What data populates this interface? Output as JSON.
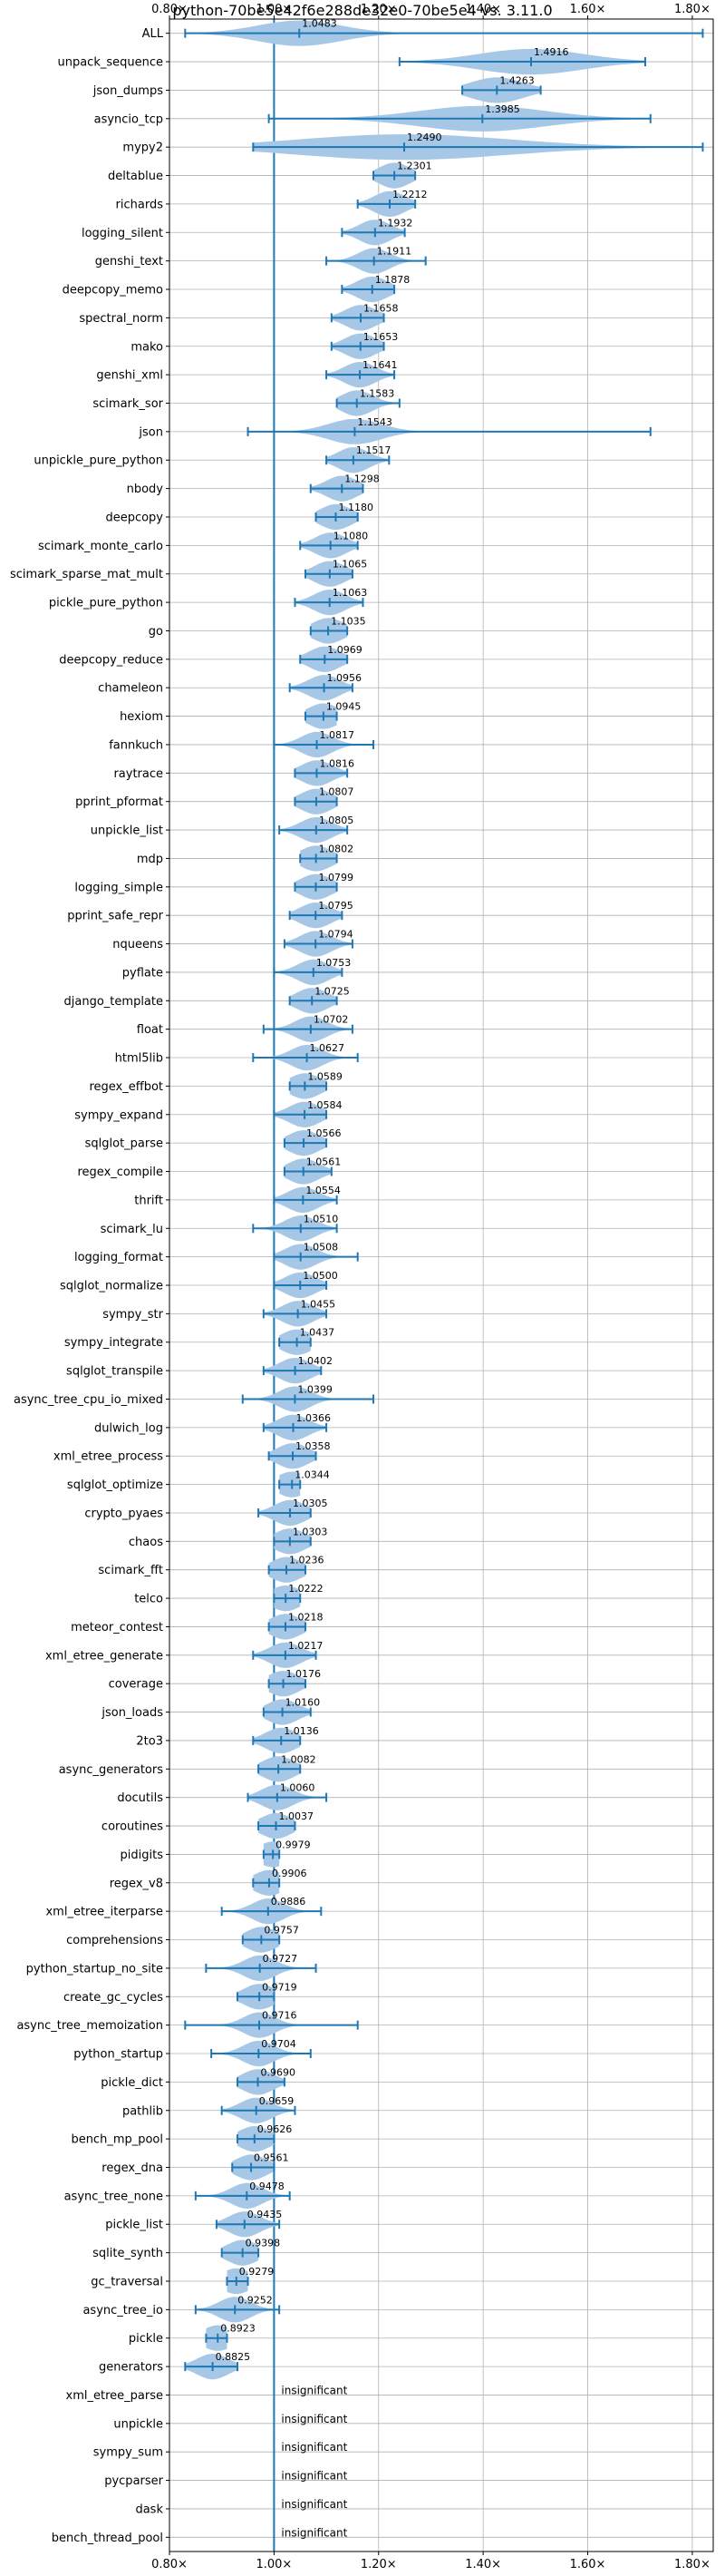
{
  "chart_data": {
    "type": "violin",
    "title": "python-70be5e42f6e288de32e0-70be5e4 vs. 3.11.0",
    "xlabel": "",
    "ylabel": "",
    "xlim": [
      0.8,
      1.84
    ],
    "xticks": [
      0.8,
      1.0,
      1.2,
      1.4,
      1.6,
      1.8
    ],
    "xtick_labels": [
      "0.80×",
      "1.00×",
      "1.20×",
      "1.40×",
      "1.60×",
      "1.80×"
    ],
    "baseline": 1.0,
    "grid": true,
    "color": "#1f77b4",
    "fill_color": "#a6c8e6",
    "insignificant_label": "insignificant",
    "benchmarks": [
      {
        "name": "ALL",
        "value": 1.0483,
        "label": "1.0483",
        "min": 0.83,
        "max": 1.82,
        "spread": 0.08
      },
      {
        "name": "unpack_sequence",
        "value": 1.4916,
        "label": "1.4916",
        "min": 1.24,
        "max": 1.71,
        "spread": 0.1
      },
      {
        "name": "json_dumps",
        "value": 1.4263,
        "label": "1.4263",
        "min": 1.36,
        "max": 1.51,
        "spread": 0.05
      },
      {
        "name": "asyncio_tcp",
        "value": 1.3985,
        "label": "1.3985",
        "min": 0.99,
        "max": 1.72,
        "spread": 0.12
      },
      {
        "name": "mypy2",
        "value": 1.249,
        "label": "1.2490",
        "min": 0.96,
        "max": 1.82,
        "spread": 0.2
      },
      {
        "name": "deltablue",
        "value": 1.2301,
        "label": "1.2301",
        "min": 1.19,
        "max": 1.27,
        "spread": 0.03
      },
      {
        "name": "richards",
        "value": 1.2212,
        "label": "1.2212",
        "min": 1.16,
        "max": 1.27,
        "spread": 0.03
      },
      {
        "name": "logging_silent",
        "value": 1.1932,
        "label": "1.1932",
        "min": 1.13,
        "max": 1.25,
        "spread": 0.03
      },
      {
        "name": "genshi_text",
        "value": 1.1911,
        "label": "1.1911",
        "min": 1.1,
        "max": 1.29,
        "spread": 0.03
      },
      {
        "name": "deepcopy_memo",
        "value": 1.1878,
        "label": "1.1878",
        "min": 1.13,
        "max": 1.23,
        "spread": 0.03
      },
      {
        "name": "spectral_norm",
        "value": 1.1658,
        "label": "1.1658",
        "min": 1.11,
        "max": 1.21,
        "spread": 0.03
      },
      {
        "name": "mako",
        "value": 1.1653,
        "label": "1.1653",
        "min": 1.11,
        "max": 1.21,
        "spread": 0.03
      },
      {
        "name": "genshi_xml",
        "value": 1.1641,
        "label": "1.1641",
        "min": 1.1,
        "max": 1.23,
        "spread": 0.03
      },
      {
        "name": "scimark_sor",
        "value": 1.1583,
        "label": "1.1583",
        "min": 1.12,
        "max": 1.24,
        "spread": 0.03
      },
      {
        "name": "json",
        "value": 1.1543,
        "label": "1.1543",
        "min": 0.95,
        "max": 1.72,
        "spread": 0.05
      },
      {
        "name": "unpickle_pure_python",
        "value": 1.1517,
        "label": "1.1517",
        "min": 1.1,
        "max": 1.22,
        "spread": 0.03
      },
      {
        "name": "nbody",
        "value": 1.1298,
        "label": "1.1298",
        "min": 1.07,
        "max": 1.17,
        "spread": 0.03
      },
      {
        "name": "deepcopy",
        "value": 1.118,
        "label": "1.1180",
        "min": 1.08,
        "max": 1.16,
        "spread": 0.03
      },
      {
        "name": "scimark_monte_carlo",
        "value": 1.108,
        "label": "1.1080",
        "min": 1.05,
        "max": 1.16,
        "spread": 0.03
      },
      {
        "name": "scimark_sparse_mat_mult",
        "value": 1.1065,
        "label": "1.1065",
        "min": 1.06,
        "max": 1.15,
        "spread": 0.03
      },
      {
        "name": "pickle_pure_python",
        "value": 1.1063,
        "label": "1.1063",
        "min": 1.04,
        "max": 1.17,
        "spread": 0.03
      },
      {
        "name": "go",
        "value": 1.1035,
        "label": "1.1035",
        "min": 1.07,
        "max": 1.14,
        "spread": 0.03
      },
      {
        "name": "deepcopy_reduce",
        "value": 1.0969,
        "label": "1.0969",
        "min": 1.05,
        "max": 1.14,
        "spread": 0.03
      },
      {
        "name": "chameleon",
        "value": 1.0956,
        "label": "1.0956",
        "min": 1.03,
        "max": 1.15,
        "spread": 0.03
      },
      {
        "name": "hexiom",
        "value": 1.0945,
        "label": "1.0945",
        "min": 1.06,
        "max": 1.12,
        "spread": 0.03
      },
      {
        "name": "fannkuch",
        "value": 1.0817,
        "label": "1.0817",
        "min": 1.0,
        "max": 1.19,
        "spread": 0.03
      },
      {
        "name": "raytrace",
        "value": 1.0816,
        "label": "1.0816",
        "min": 1.04,
        "max": 1.14,
        "spread": 0.03
      },
      {
        "name": "pprint_pformat",
        "value": 1.0807,
        "label": "1.0807",
        "min": 1.04,
        "max": 1.12,
        "spread": 0.03
      },
      {
        "name": "unpickle_list",
        "value": 1.0805,
        "label": "1.0805",
        "min": 1.01,
        "max": 1.14,
        "spread": 0.03
      },
      {
        "name": "mdp",
        "value": 1.0802,
        "label": "1.0802",
        "min": 1.05,
        "max": 1.12,
        "spread": 0.03
      },
      {
        "name": "logging_simple",
        "value": 1.0799,
        "label": "1.0799",
        "min": 1.04,
        "max": 1.12,
        "spread": 0.03
      },
      {
        "name": "pprint_safe_repr",
        "value": 1.0795,
        "label": "1.0795",
        "min": 1.03,
        "max": 1.13,
        "spread": 0.03
      },
      {
        "name": "nqueens",
        "value": 1.0794,
        "label": "1.0794",
        "min": 1.02,
        "max": 1.15,
        "spread": 0.03
      },
      {
        "name": "pyflate",
        "value": 1.0753,
        "label": "1.0753",
        "min": 1.0,
        "max": 1.13,
        "spread": 0.03
      },
      {
        "name": "django_template",
        "value": 1.0725,
        "label": "1.0725",
        "min": 1.03,
        "max": 1.12,
        "spread": 0.03
      },
      {
        "name": "float",
        "value": 1.0702,
        "label": "1.0702",
        "min": 0.98,
        "max": 1.15,
        "spread": 0.03
      },
      {
        "name": "html5lib",
        "value": 1.0627,
        "label": "1.0627",
        "min": 0.96,
        "max": 1.16,
        "spread": 0.03
      },
      {
        "name": "regex_effbot",
        "value": 1.0589,
        "label": "1.0589",
        "min": 1.03,
        "max": 1.1,
        "spread": 0.03
      },
      {
        "name": "sympy_expand",
        "value": 1.0584,
        "label": "1.0584",
        "min": 1.0,
        "max": 1.1,
        "spread": 0.03
      },
      {
        "name": "sqlglot_parse",
        "value": 1.0566,
        "label": "1.0566",
        "min": 1.02,
        "max": 1.1,
        "spread": 0.03
      },
      {
        "name": "regex_compile",
        "value": 1.0561,
        "label": "1.0561",
        "min": 1.02,
        "max": 1.11,
        "spread": 0.03
      },
      {
        "name": "thrift",
        "value": 1.0554,
        "label": "1.0554",
        "min": 1.0,
        "max": 1.12,
        "spread": 0.03
      },
      {
        "name": "scimark_lu",
        "value": 1.051,
        "label": "1.0510",
        "min": 0.96,
        "max": 1.12,
        "spread": 0.03
      },
      {
        "name": "logging_format",
        "value": 1.0508,
        "label": "1.0508",
        "min": 1.0,
        "max": 1.16,
        "spread": 0.03
      },
      {
        "name": "sqlglot_normalize",
        "value": 1.05,
        "label": "1.0500",
        "min": 1.0,
        "max": 1.1,
        "spread": 0.03
      },
      {
        "name": "sympy_str",
        "value": 1.0455,
        "label": "1.0455",
        "min": 0.98,
        "max": 1.1,
        "spread": 0.03
      },
      {
        "name": "sympy_integrate",
        "value": 1.0437,
        "label": "1.0437",
        "min": 1.01,
        "max": 1.07,
        "spread": 0.03
      },
      {
        "name": "sqlglot_transpile",
        "value": 1.0402,
        "label": "1.0402",
        "min": 0.98,
        "max": 1.09,
        "spread": 0.03
      },
      {
        "name": "async_tree_cpu_io_mixed",
        "value": 1.0399,
        "label": "1.0399",
        "min": 0.94,
        "max": 1.19,
        "spread": 0.03
      },
      {
        "name": "dulwich_log",
        "value": 1.0366,
        "label": "1.0366",
        "min": 0.98,
        "max": 1.1,
        "spread": 0.03
      },
      {
        "name": "xml_etree_process",
        "value": 1.0358,
        "label": "1.0358",
        "min": 0.99,
        "max": 1.08,
        "spread": 0.03
      },
      {
        "name": "sqlglot_optimize",
        "value": 1.0344,
        "label": "1.0344",
        "min": 1.01,
        "max": 1.05,
        "spread": 0.03
      },
      {
        "name": "crypto_pyaes",
        "value": 1.0305,
        "label": "1.0305",
        "min": 0.97,
        "max": 1.07,
        "spread": 0.03
      },
      {
        "name": "chaos",
        "value": 1.0303,
        "label": "1.0303",
        "min": 1.0,
        "max": 1.07,
        "spread": 0.03
      },
      {
        "name": "scimark_fft",
        "value": 1.0236,
        "label": "1.0236",
        "min": 0.99,
        "max": 1.06,
        "spread": 0.03
      },
      {
        "name": "telco",
        "value": 1.0222,
        "label": "1.0222",
        "min": 1.0,
        "max": 1.05,
        "spread": 0.03
      },
      {
        "name": "meteor_contest",
        "value": 1.0218,
        "label": "1.0218",
        "min": 0.99,
        "max": 1.06,
        "spread": 0.03
      },
      {
        "name": "xml_etree_generate",
        "value": 1.0217,
        "label": "1.0217",
        "min": 0.96,
        "max": 1.08,
        "spread": 0.03
      },
      {
        "name": "coverage",
        "value": 1.0176,
        "label": "1.0176",
        "min": 0.99,
        "max": 1.06,
        "spread": 0.03
      },
      {
        "name": "json_loads",
        "value": 1.016,
        "label": "1.0160",
        "min": 0.98,
        "max": 1.07,
        "spread": 0.03
      },
      {
        "name": "2to3",
        "value": 1.0136,
        "label": "1.0136",
        "min": 0.96,
        "max": 1.05,
        "spread": 0.03
      },
      {
        "name": "async_generators",
        "value": 1.0082,
        "label": "1.0082",
        "min": 0.97,
        "max": 1.05,
        "spread": 0.03
      },
      {
        "name": "docutils",
        "value": 1.006,
        "label": "1.0060",
        "min": 0.95,
        "max": 1.1,
        "spread": 0.03
      },
      {
        "name": "coroutines",
        "value": 1.0037,
        "label": "1.0037",
        "min": 0.97,
        "max": 1.04,
        "spread": 0.03
      },
      {
        "name": "pidigits",
        "value": 0.9979,
        "label": "0.9979",
        "min": 0.98,
        "max": 1.01,
        "spread": 0.03
      },
      {
        "name": "regex_v8",
        "value": 0.9906,
        "label": "0.9906",
        "min": 0.96,
        "max": 1.01,
        "spread": 0.03
      },
      {
        "name": "xml_etree_iterparse",
        "value": 0.9886,
        "label": "0.9886",
        "min": 0.9,
        "max": 1.09,
        "spread": 0.03
      },
      {
        "name": "comprehensions",
        "value": 0.9757,
        "label": "0.9757",
        "min": 0.94,
        "max": 1.01,
        "spread": 0.03
      },
      {
        "name": "python_startup_no_site",
        "value": 0.9727,
        "label": "0.9727",
        "min": 0.87,
        "max": 1.08,
        "spread": 0.03
      },
      {
        "name": "create_gc_cycles",
        "value": 0.9719,
        "label": "0.9719",
        "min": 0.93,
        "max": 1.0,
        "spread": 0.03
      },
      {
        "name": "async_tree_memoization",
        "value": 0.9716,
        "label": "0.9716",
        "min": 0.83,
        "max": 1.16,
        "spread": 0.03
      },
      {
        "name": "python_startup",
        "value": 0.9704,
        "label": "0.9704",
        "min": 0.88,
        "max": 1.07,
        "spread": 0.03
      },
      {
        "name": "pickle_dict",
        "value": 0.969,
        "label": "0.9690",
        "min": 0.93,
        "max": 1.02,
        "spread": 0.03
      },
      {
        "name": "pathlib",
        "value": 0.9659,
        "label": "0.9659",
        "min": 0.9,
        "max": 1.04,
        "spread": 0.03
      },
      {
        "name": "bench_mp_pool",
        "value": 0.9626,
        "label": "0.9626",
        "min": 0.93,
        "max": 1.0,
        "spread": 0.03
      },
      {
        "name": "regex_dna",
        "value": 0.9561,
        "label": "0.9561",
        "min": 0.92,
        "max": 1.0,
        "spread": 0.03
      },
      {
        "name": "async_tree_none",
        "value": 0.9478,
        "label": "0.9478",
        "min": 0.85,
        "max": 1.03,
        "spread": 0.03
      },
      {
        "name": "pickle_list",
        "value": 0.9435,
        "label": "0.9435",
        "min": 0.89,
        "max": 1.01,
        "spread": 0.03
      },
      {
        "name": "sqlite_synth",
        "value": 0.9398,
        "label": "0.9398",
        "min": 0.9,
        "max": 0.97,
        "spread": 0.03
      },
      {
        "name": "gc_traversal",
        "value": 0.9279,
        "label": "0.9279",
        "min": 0.91,
        "max": 0.95,
        "spread": 0.03
      },
      {
        "name": "async_tree_io",
        "value": 0.9252,
        "label": "0.9252",
        "min": 0.85,
        "max": 1.01,
        "spread": 0.03
      },
      {
        "name": "pickle",
        "value": 0.8923,
        "label": "0.8923",
        "min": 0.87,
        "max": 0.91,
        "spread": 0.03
      },
      {
        "name": "generators",
        "value": 0.8825,
        "label": "0.8825",
        "min": 0.83,
        "max": 0.93,
        "spread": 0.03
      },
      {
        "name": "xml_etree_parse",
        "insignificant": true
      },
      {
        "name": "unpickle",
        "insignificant": true
      },
      {
        "name": "sympy_sum",
        "insignificant": true
      },
      {
        "name": "pycparser",
        "insignificant": true
      },
      {
        "name": "dask",
        "insignificant": true
      },
      {
        "name": "bench_thread_pool",
        "insignificant": true
      }
    ]
  }
}
